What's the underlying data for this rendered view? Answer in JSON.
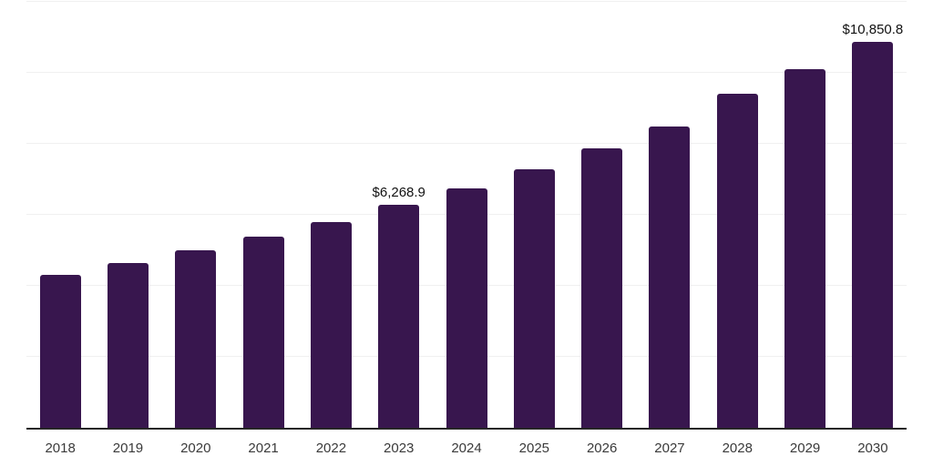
{
  "chart_data": {
    "type": "bar",
    "title": "",
    "xlabel": "",
    "ylabel": "",
    "categories": [
      "2018",
      "2019",
      "2020",
      "2021",
      "2022",
      "2023",
      "2024",
      "2025",
      "2026",
      "2027",
      "2028",
      "2029",
      "2030"
    ],
    "values": [
      4300,
      4640,
      5000,
      5380,
      5790,
      6268.9,
      6720,
      7270,
      7860,
      8460,
      9380,
      10090,
      10850.8
    ],
    "data_labels": [
      "",
      "",
      "",
      "",
      "",
      "$6,268.9",
      "",
      "",
      "",
      "",
      "",
      "",
      "$10,850.8"
    ],
    "ylim": [
      0,
      12000
    ],
    "gridline_step": 2000,
    "grid": "horizontal",
    "legend": "none",
    "colors": {
      "bar": "#38164e",
      "gridline": "#f0f0f0",
      "axis_line": "#262626",
      "tick_label": "#3a3a3a",
      "data_label": "#111111",
      "background": "#ffffff"
    }
  }
}
